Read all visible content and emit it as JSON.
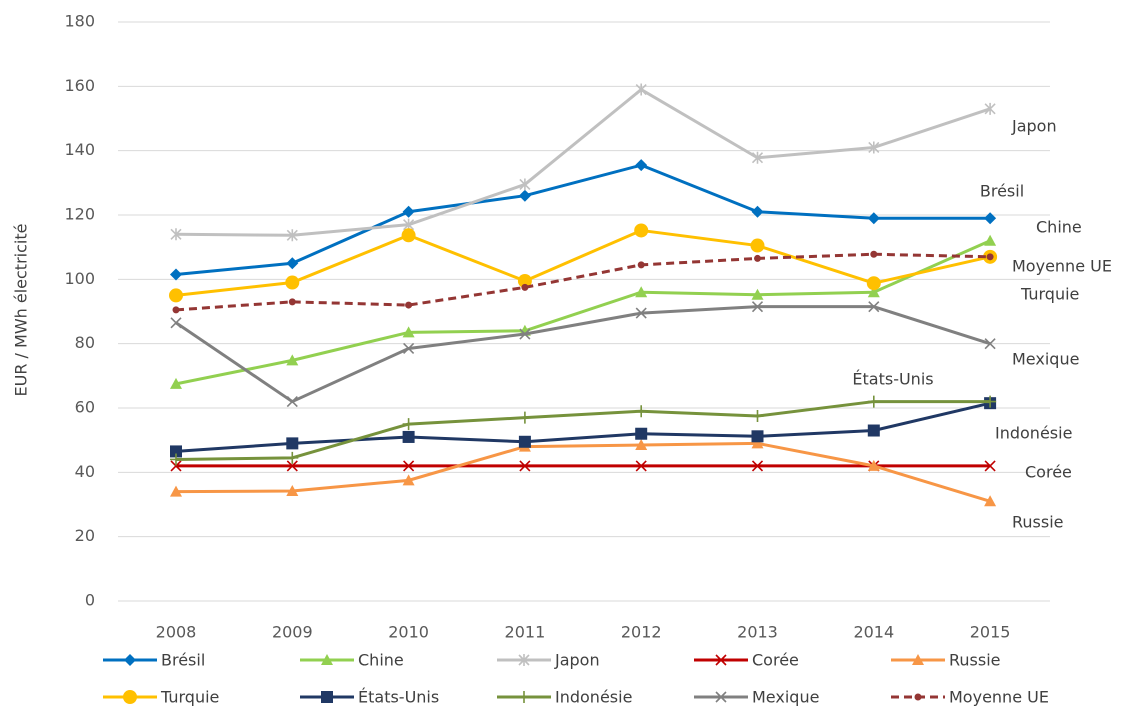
{
  "chart_data": {
    "type": "line",
    "y_label": "EUR / MWh électricité",
    "categories": [
      "2008",
      "2009",
      "2010",
      "2011",
      "2012",
      "2013",
      "2014",
      "2015"
    ],
    "ylim": [
      0,
      180
    ],
    "yticks": [
      0,
      20,
      40,
      60,
      80,
      100,
      120,
      140,
      160,
      180
    ],
    "grid": true,
    "series": [
      {
        "name": "Brésil",
        "color": "#0070c0",
        "marker": "diamond",
        "values": [
          101.5,
          105,
          121,
          126,
          135.5,
          121,
          119,
          119
        ]
      },
      {
        "name": "Chine",
        "color": "#92d050",
        "marker": "triangle",
        "values": [
          67.5,
          74.8,
          83.5,
          84,
          96,
          95.2,
          96,
          112
        ]
      },
      {
        "name": "Japon",
        "color": "#c0c0c0",
        "marker": "star",
        "values": [
          114,
          113.7,
          117,
          129.5,
          159,
          137.8,
          141,
          153
        ]
      },
      {
        "name": "Corée",
        "color": "#c00000",
        "marker": "x",
        "values": [
          42,
          42,
          42,
          42,
          42,
          42,
          42,
          42
        ]
      },
      {
        "name": "Russie",
        "color": "#f79646",
        "marker": "triangle",
        "values": [
          34,
          34.2,
          37.5,
          48,
          48.5,
          49,
          42,
          31
        ]
      },
      {
        "name": "Turquie",
        "color": "#ffc000",
        "marker": "circle",
        "values": [
          95,
          99,
          113.7,
          99.5,
          115.2,
          110.5,
          98.8,
          107
        ]
      },
      {
        "name": "États-Unis",
        "color": "#203864",
        "marker": "square",
        "values": [
          46.5,
          49,
          51,
          49.5,
          52,
          51.2,
          53,
          61.5
        ]
      },
      {
        "name": "Indonésie",
        "color": "#76923c",
        "marker": "plus",
        "values": [
          44,
          44.5,
          55,
          57,
          59,
          57.5,
          62,
          62
        ]
      },
      {
        "name": "Mexique",
        "color": "#808080",
        "marker": "x",
        "values": [
          86.5,
          62,
          78.5,
          83,
          89.5,
          91.5,
          91.5,
          80
        ]
      },
      {
        "name": "Moyenne UE",
        "color": "#943634",
        "marker": "dot",
        "dashed": true,
        "values": [
          90.5,
          93,
          92,
          97.5,
          104.5,
          106.5,
          107.8,
          107
        ]
      }
    ]
  }
}
